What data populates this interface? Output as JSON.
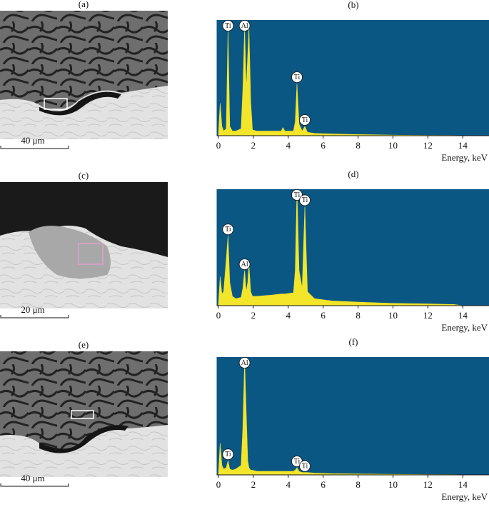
{
  "panels": [
    {
      "label": "(a)",
      "scale_bar": "40 μm"
    },
    {
      "label": "(c)",
      "scale_bar": "20 μm"
    },
    {
      "label": "(e)",
      "scale_bar": "40 μm"
    }
  ],
  "chart_data": [
    {
      "type": "area",
      "label": "(b)",
      "x_label": "Energy, keV",
      "color": "#f2e52a",
      "background": "#0b5784",
      "xlim": [
        -0.1,
        15.5
      ],
      "ylim": [
        0,
        100
      ],
      "xticks": [
        0,
        2,
        4,
        6,
        8,
        10,
        12,
        14
      ],
      "x": [
        0,
        0.1,
        0.2,
        0.3,
        0.45,
        0.55,
        0.65,
        0.8,
        1.0,
        1.3,
        1.4,
        1.5,
        1.6,
        1.68,
        1.75,
        1.85,
        1.95,
        2.2,
        3.0,
        3.6,
        3.7,
        3.8,
        4.3,
        4.4,
        4.5,
        4.62,
        4.8,
        4.95,
        5.1,
        5.5,
        6.5,
        8,
        10,
        12,
        13.5,
        14
      ],
      "values": [
        0,
        28,
        8,
        4,
        6,
        92,
        8,
        4,
        4,
        6,
        40,
        93,
        40,
        70,
        93,
        30,
        5,
        4,
        4,
        4,
        7,
        4,
        4,
        12,
        45,
        10,
        4,
        8,
        3,
        2,
        1.5,
        1,
        0.5,
        0.3,
        0.2,
        0
      ],
      "annotations": [
        {
          "text": "Ti",
          "x": 0.55
        },
        {
          "text": "Al",
          "x": 1.5
        },
        {
          "text": "Ti",
          "x": 4.5
        },
        {
          "text": "Ti",
          "x": 4.95
        }
      ]
    },
    {
      "type": "area",
      "label": "(d)",
      "x_label": "Energy, keV",
      "color": "#f2e52a",
      "background": "#0b5784",
      "xlim": [
        -0.1,
        15.5
      ],
      "ylim": [
        0,
        100
      ],
      "xticks": [
        0,
        2,
        4,
        6,
        8,
        10,
        12,
        14
      ],
      "x": [
        0,
        0.1,
        0.2,
        0.3,
        0.45,
        0.55,
        0.65,
        0.8,
        1.0,
        1.3,
        1.4,
        1.5,
        1.6,
        1.68,
        1.75,
        1.85,
        1.95,
        2.2,
        3.0,
        3.6,
        3.7,
        3.8,
        4.3,
        4.4,
        4.5,
        4.62,
        4.8,
        4.95,
        5.1,
        5.5,
        6.5,
        8,
        10,
        12,
        13.5,
        14
      ],
      "values": [
        0,
        25,
        10,
        12,
        40,
        60,
        20,
        8,
        6,
        7,
        15,
        30,
        12,
        20,
        35,
        12,
        8,
        8,
        9,
        10,
        10,
        10,
        11,
        30,
        100,
        30,
        15,
        85,
        12,
        6,
        4,
        3,
        2,
        1.5,
        1,
        0
      ],
      "annotations": [
        {
          "text": "Ti",
          "x": 0.55
        },
        {
          "text": "Al",
          "x": 1.5
        },
        {
          "text": "Ti",
          "x": 4.5
        },
        {
          "text": "Ti",
          "x": 4.95
        }
      ]
    },
    {
      "type": "area",
      "label": "(f)",
      "x_label": "Energy, keV",
      "color": "#f2e52a",
      "background": "#0b5784",
      "xlim": [
        -0.1,
        15.5
      ],
      "ylim": [
        0,
        100
      ],
      "xticks": [
        0,
        2,
        4,
        6,
        8,
        10,
        12,
        14
      ],
      "x": [
        0,
        0.1,
        0.2,
        0.3,
        0.45,
        0.55,
        0.65,
        0.8,
        1.0,
        1.3,
        1.4,
        1.5,
        1.6,
        1.68,
        1.75,
        1.85,
        1.95,
        2.2,
        3.0,
        3.6,
        3.7,
        3.8,
        4.3,
        4.4,
        4.5,
        4.62,
        4.8,
        4.95,
        5.1,
        5.5,
        6.5,
        8,
        10,
        12,
        13.5,
        14
      ],
      "values": [
        0,
        27,
        8,
        5,
        6,
        12,
        5,
        4,
        5,
        8,
        40,
        97,
        50,
        12,
        6,
        4,
        4,
        3,
        3,
        3,
        3,
        3,
        3,
        4,
        6,
        3,
        2,
        2,
        2,
        1.5,
        1,
        0.8,
        0.5,
        0.3,
        0.2,
        0
      ],
      "annotations": [
        {
          "text": "Ti",
          "x": 0.55
        },
        {
          "text": "Al",
          "x": 1.5
        },
        {
          "text": "Ti",
          "x": 4.5
        },
        {
          "text": "Ti",
          "x": 4.95
        }
      ]
    }
  ]
}
